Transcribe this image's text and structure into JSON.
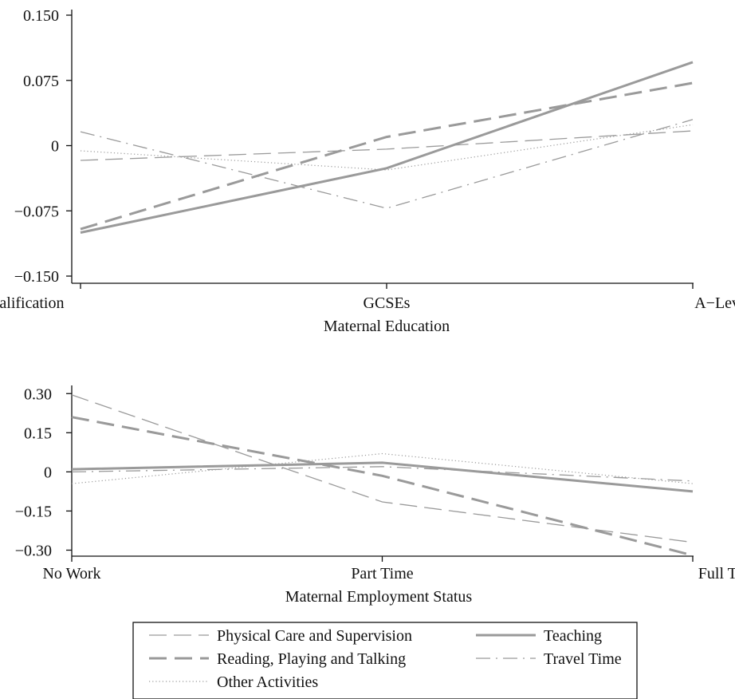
{
  "chart_data": [
    {
      "type": "line",
      "xlabel": "Maternal Education",
      "ylabel": "",
      "categories": [
        "No Qualification",
        "GCSEs",
        "A−Level +"
      ],
      "ylim": [
        -0.15,
        0.15
      ],
      "yticks": [
        0.15,
        0.075,
        0,
        -0.075,
        -0.15
      ],
      "ytick_labels": [
        "0.150",
        "0.075",
        "0",
        "−0.075",
        "−0.150"
      ],
      "grid": false,
      "series": [
        {
          "name": "Physical Care and Supervision",
          "values": [
            -0.017,
            -0.004,
            0.017
          ]
        },
        {
          "name": "Reading, Playing and Talking",
          "values": [
            -0.096,
            0.01,
            0.072
          ]
        },
        {
          "name": "Other Activities",
          "values": [
            -0.006,
            -0.028,
            0.024
          ]
        },
        {
          "name": "Teaching",
          "values": [
            -0.1,
            -0.026,
            0.096
          ]
        },
        {
          "name": "Travel Time",
          "values": [
            0.016,
            -0.072,
            0.03
          ]
        }
      ]
    },
    {
      "type": "line",
      "xlabel": "Maternal Employment Status",
      "ylabel": "",
      "categories": [
        "No Work",
        "Part Time",
        "Full Time"
      ],
      "ylim": [
        -0.32,
        0.31
      ],
      "yticks": [
        0.3,
        0.15,
        0,
        -0.15,
        -0.3
      ],
      "ytick_labels": [
        "0.30",
        "0.15",
        "0",
        "−0.15",
        "−0.30"
      ],
      "grid": false,
      "series": [
        {
          "name": "Physical Care and Supervision",
          "values": [
            0.295,
            -0.115,
            -0.27
          ]
        },
        {
          "name": "Reading, Playing and Talking",
          "values": [
            0.21,
            -0.015,
            -0.32
          ]
        },
        {
          "name": "Other Activities",
          "values": [
            -0.045,
            0.07,
            -0.045
          ]
        },
        {
          "name": "Teaching",
          "values": [
            0.01,
            0.035,
            -0.075
          ]
        },
        {
          "name": "Travel Time",
          "values": [
            0.0,
            0.02,
            -0.035
          ]
        }
      ]
    }
  ],
  "legend": {
    "placement": "bottom-center",
    "items": [
      {
        "label": "Physical Care and Supervision",
        "style": "longdash-thin"
      },
      {
        "label": "Teaching",
        "style": "solid-thick"
      },
      {
        "label": "Reading, Playing and Talking",
        "style": "longdash-thick"
      },
      {
        "label": "Travel Time",
        "style": "dashdot"
      },
      {
        "label": "Other Activities",
        "style": "dotted"
      }
    ]
  },
  "colors": {
    "lines": "#9a9a9a",
    "axes": "#111111"
  }
}
